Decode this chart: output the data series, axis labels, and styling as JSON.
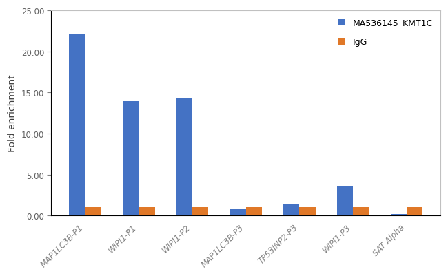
{
  "categories": [
    "MAP1LC3B-P1",
    "WIPI1-P1",
    "WIPI1-P2",
    "MAP1LC3B-P3",
    "TP53INP2-P3",
    "WIPI1-P3",
    "SAT Alpha"
  ],
  "series": [
    {
      "label": "MA536145_KMT1C",
      "color": "#4472C4",
      "values": [
        22.1,
        13.9,
        14.3,
        0.9,
        1.35,
        3.65,
        0.15
      ]
    },
    {
      "label": "IgG",
      "color": "#E07828",
      "values": [
        1.05,
        1.05,
        1.05,
        1.05,
        1.05,
        1.05,
        1.05
      ]
    }
  ],
  "ylabel": "Fold enrichment",
  "ylim": [
    0,
    25
  ],
  "yticks": [
    0,
    5,
    10,
    15,
    20,
    25
  ],
  "ytick_labels": [
    "0.00",
    "5.00",
    "10.00",
    "15.00",
    "20.00",
    "25.00"
  ],
  "bar_width": 0.3,
  "legend_loc": "upper right",
  "background_color": "#ffffff",
  "tick_fontsize": 8.5,
  "label_fontsize": 10,
  "legend_fontsize": 9,
  "xtick_color": "#808080",
  "border_color": "#c0c0c0"
}
